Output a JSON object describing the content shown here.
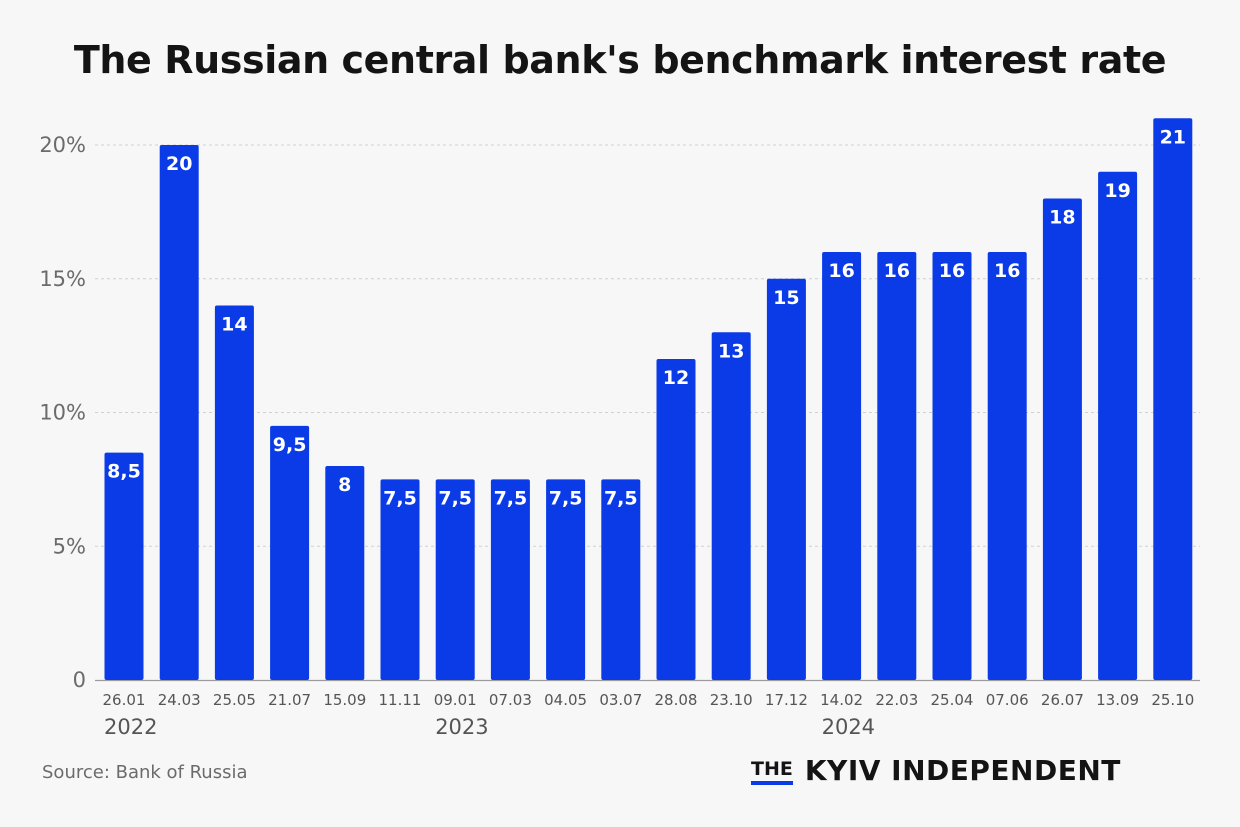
{
  "title": "The Russian central bank's benchmark interest rate",
  "source": "Source: Bank of Russia",
  "logo": {
    "prefix": "THE",
    "name": "KYIV INDEPENDENT"
  },
  "colors": {
    "bar": "#0a3be6",
    "grid": "#d0d0d0",
    "accent": "#0a3be6"
  },
  "chart_data": {
    "type": "bar",
    "title": "The Russian central bank's benchmark interest rate",
    "xlabel": "",
    "ylabel": "",
    "ylim": [
      0,
      21
    ],
    "grid": true,
    "yticks": [
      {
        "value": 0,
        "label": "0"
      },
      {
        "value": 5,
        "label": "5%"
      },
      {
        "value": 10,
        "label": "10%"
      },
      {
        "value": 15,
        "label": "15%"
      },
      {
        "value": 20,
        "label": "20%"
      }
    ],
    "categories": [
      "26.01",
      "24.03",
      "25.05",
      "21.07",
      "15.09",
      "11.11",
      "09.01",
      "07.03",
      "04.05",
      "03.07",
      "28.08",
      "23.10",
      "17.12",
      "14.02",
      "22.03",
      "25.04",
      "07.06",
      "26.07",
      "13.09",
      "25.10"
    ],
    "values": [
      8.5,
      20,
      14,
      9.5,
      8,
      7.5,
      7.5,
      7.5,
      7.5,
      7.5,
      12,
      13,
      15,
      16,
      16,
      16,
      16,
      18,
      19,
      21
    ],
    "data_labels": [
      "8,5",
      "20",
      "14",
      "9,5",
      "8",
      "7,5",
      "7,5",
      "7,5",
      "7,5",
      "7,5",
      "12",
      "13",
      "15",
      "16",
      "16",
      "16",
      "16",
      "18",
      "19",
      "21"
    ],
    "year_labels": [
      {
        "label": "2022",
        "category_index": 0
      },
      {
        "label": "2023",
        "category_index": 6
      },
      {
        "label": "2024",
        "category_index": 13
      }
    ]
  }
}
